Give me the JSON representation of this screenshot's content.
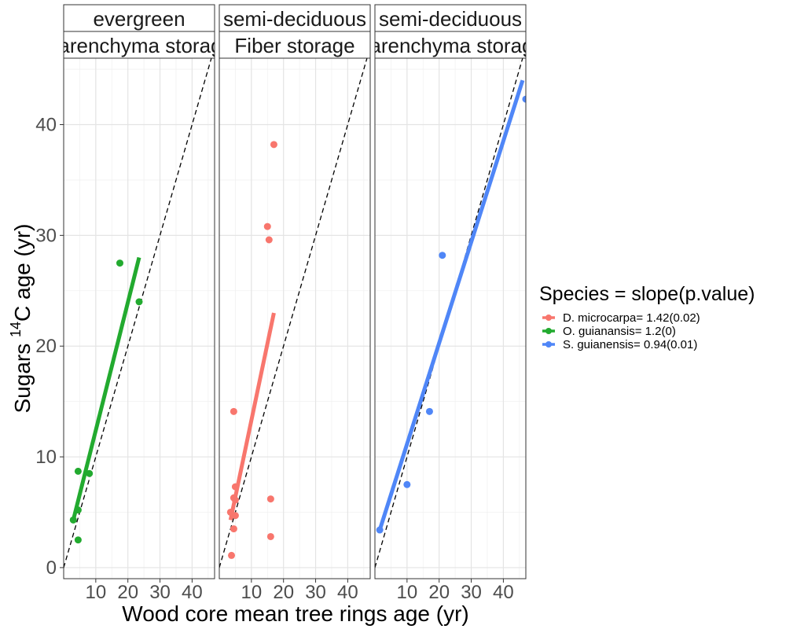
{
  "chart_data": {
    "type": "scatter",
    "xlabel": "Wood core mean tree rings age (yr)",
    "ylabel_main": "Sugars ",
    "ylabel_sup": "14",
    "ylabel_rest": "C age (yr)",
    "xlim": [
      0,
      47
    ],
    "ylim": [
      -1,
      46
    ],
    "x_ticks": [
      10,
      20,
      30,
      40
    ],
    "y_ticks": [
      0,
      10,
      20,
      30,
      40
    ],
    "x_tick_labels": [
      "10",
      "20",
      "30",
      "40"
    ],
    "y_tick_labels": [
      "0",
      "10",
      "20",
      "30",
      "40"
    ],
    "grid": true,
    "reference_line": "1:1 dashed",
    "legend_position": "right",
    "legend": {
      "title": "Species = slope(p.value)",
      "entries": [
        {
          "label": "D. microcarpa= 1.42(0.02)",
          "color": "#F8766D"
        },
        {
          "label": "O. guianansis= 1.2(0)",
          "color": "#22AA2F"
        },
        {
          "label": "S. guianensis= 0.94(0.01)",
          "color": "#4F86F7"
        }
      ]
    },
    "panels": [
      {
        "strip_top": "evergreen",
        "strip_bottom": "Parenchyma storage",
        "color": "#22AA2F",
        "points": [
          [
            3,
            4.3
          ],
          [
            4.5,
            5.2
          ],
          [
            4.5,
            8.7
          ],
          [
            8,
            8.5
          ],
          [
            4.5,
            2.5
          ],
          [
            17.5,
            27.5
          ],
          [
            23.5,
            24
          ]
        ],
        "fit": [
          [
            3,
            4.3
          ],
          [
            23.5,
            28
          ]
        ]
      },
      {
        "strip_top": "semi-deciduous",
        "strip_bottom": "Fiber storage",
        "color": "#F8766D",
        "points": [
          [
            3.5,
            5
          ],
          [
            4.5,
            6.3
          ],
          [
            5,
            7.3
          ],
          [
            5,
            6.1
          ],
          [
            5,
            4.7
          ],
          [
            4.5,
            3.5
          ],
          [
            3.8,
            1.1
          ],
          [
            4.5,
            14.1
          ],
          [
            15,
            30.8
          ],
          [
            15.5,
            29.6
          ],
          [
            17,
            38.2
          ],
          [
            16,
            6.2
          ],
          [
            16,
            2.8
          ]
        ],
        "fit": [
          [
            3.5,
            4.3
          ],
          [
            17,
            23
          ]
        ]
      },
      {
        "strip_top": "semi-deciduous",
        "strip_bottom": "Parenchyma storage",
        "color": "#4F86F7",
        "points": [
          [
            1.5,
            3.4
          ],
          [
            10,
            7.5
          ],
          [
            17,
            14.1
          ],
          [
            21,
            28.2
          ],
          [
            47,
            42.3
          ]
        ],
        "fit": [
          [
            1.5,
            3.4
          ],
          [
            46,
            44
          ]
        ]
      }
    ]
  }
}
